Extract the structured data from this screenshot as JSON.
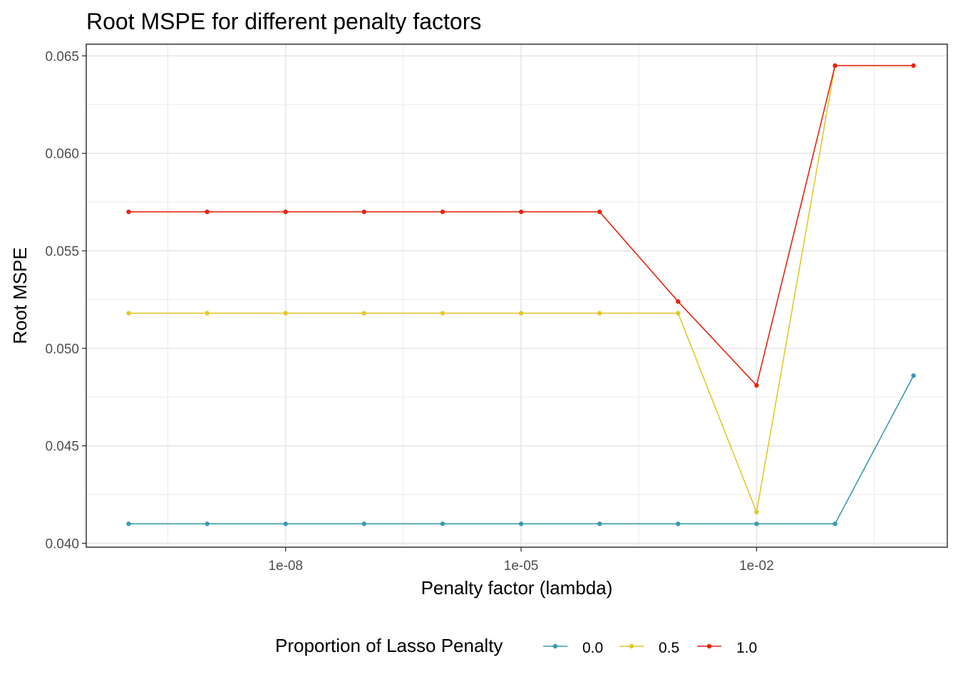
{
  "chart_data": {
    "type": "line",
    "title": "Root MSPE for different penalty factors",
    "xlabel": "Penalty factor (lambda)",
    "ylabel": "Root MSPE",
    "x_scale": "log10",
    "x": [
      1e-10,
      1e-09,
      1e-08,
      1e-07,
      1e-06,
      1e-05,
      0.0001,
      0.001,
      0.01,
      0.1
    ],
    "x_ticks": [
      1e-08,
      1e-05,
      0.01
    ],
    "x_tick_labels": [
      "1e-08",
      "1e-05",
      "1e-02"
    ],
    "y_ticks": [
      0.04,
      0.045,
      0.05,
      0.055,
      0.06,
      0.065
    ],
    "y_tick_labels": [
      "0.040",
      "0.045",
      "0.050",
      "0.055",
      "0.060",
      "0.065"
    ],
    "ylim": [
      0.0398,
      0.0656
    ],
    "grid": true,
    "legend": {
      "title": "Proportion of Lasso Penalty",
      "position": "bottom"
    },
    "series": [
      {
        "name": "0.0",
        "color": "#3a9ab2",
        "values": [
          0.041,
          0.041,
          0.041,
          0.041,
          0.041,
          0.041,
          0.041,
          0.041,
          0.041,
          0.041,
          0.0486
        ],
        "x": [
          1e-10,
          1e-09,
          1e-08,
          1e-07,
          1e-06,
          1e-05,
          0.0001,
          0.001,
          0.01,
          0.1,
          1
        ]
      },
      {
        "name": "0.5",
        "color": "#e2c82a",
        "values": [
          0.0518,
          0.0518,
          0.0518,
          0.0518,
          0.0518,
          0.0518,
          0.0518,
          0.0518,
          0.0416,
          0.0645
        ],
        "x": [
          1e-10,
          1e-09,
          1e-08,
          1e-07,
          1e-06,
          1e-05,
          0.0001,
          0.001,
          0.01,
          0.1
        ]
      },
      {
        "name": "1.0",
        "color": "#e62410",
        "values": [
          0.057,
          0.057,
          0.057,
          0.057,
          0.057,
          0.057,
          0.057,
          0.0524,
          0.0481,
          0.0645,
          0.0645
        ],
        "x": [
          1e-10,
          1e-09,
          1e-08,
          1e-07,
          1e-06,
          1e-05,
          0.0001,
          0.001,
          0.01,
          0.1,
          1
        ]
      }
    ]
  }
}
